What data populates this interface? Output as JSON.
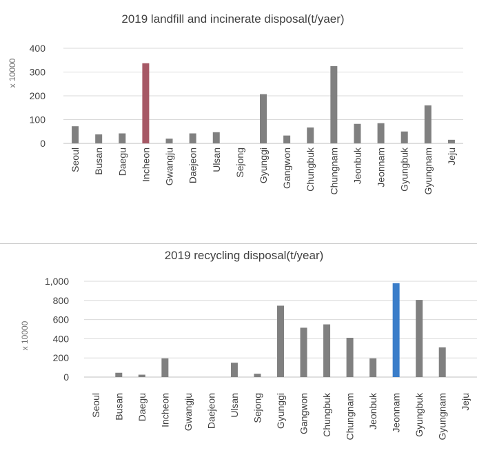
{
  "chart_data": [
    {
      "type": "bar",
      "title": "2019 landfill and incinerate disposal(t/yaer)",
      "ylabel": "x 10000",
      "ylim": [
        0,
        400
      ],
      "yticks": [
        "0",
        "100",
        "200",
        "300",
        "400"
      ],
      "grid": true,
      "categories": [
        "Seoul",
        "Busan",
        "Daegu",
        "Incheon",
        "Gwangju",
        "Daejeon",
        "Ulsan",
        "Sejong",
        "Gyunggi",
        "Gangwon",
        "Chungbuk",
        "Chungnam",
        "Jeonbuk",
        "Jeonnam",
        "Gyungbuk",
        "Gyungnam",
        "Jeju"
      ],
      "values": [
        72,
        38,
        42,
        337,
        20,
        42,
        47,
        0,
        207,
        33,
        67,
        325,
        82,
        85,
        50,
        160,
        15
      ],
      "colors": {
        "default": "#808080",
        "highlight": "#a65865"
      },
      "highlight_category": "Incheon"
    },
    {
      "type": "bar",
      "title": "2019 recycling disposal(t/year)",
      "ylabel": "x 10000",
      "ylim": [
        0,
        1000
      ],
      "yticks": [
        "0",
        "200",
        "400",
        "600",
        "800",
        "1,000"
      ],
      "grid": true,
      "categories": [
        "Seoul",
        "Busan",
        "Daegu",
        "Incheon",
        "Gwangju",
        "Daejeon",
        "Ulsan",
        "Sejong",
        "Gyunggi",
        "Gangwon",
        "Chungbuk",
        "Chungnam",
        "Jeonbuk",
        "Jeonnam",
        "Gyungbuk",
        "Gyungnam",
        "Jeju"
      ],
      "values": [
        0,
        45,
        25,
        195,
        0,
        0,
        150,
        35,
        745,
        515,
        550,
        410,
        195,
        980,
        805,
        310,
        0
      ],
      "colors": {
        "default": "#808080",
        "highlight": "#3a7dc9"
      },
      "highlight_category": "Jeonnam"
    }
  ]
}
